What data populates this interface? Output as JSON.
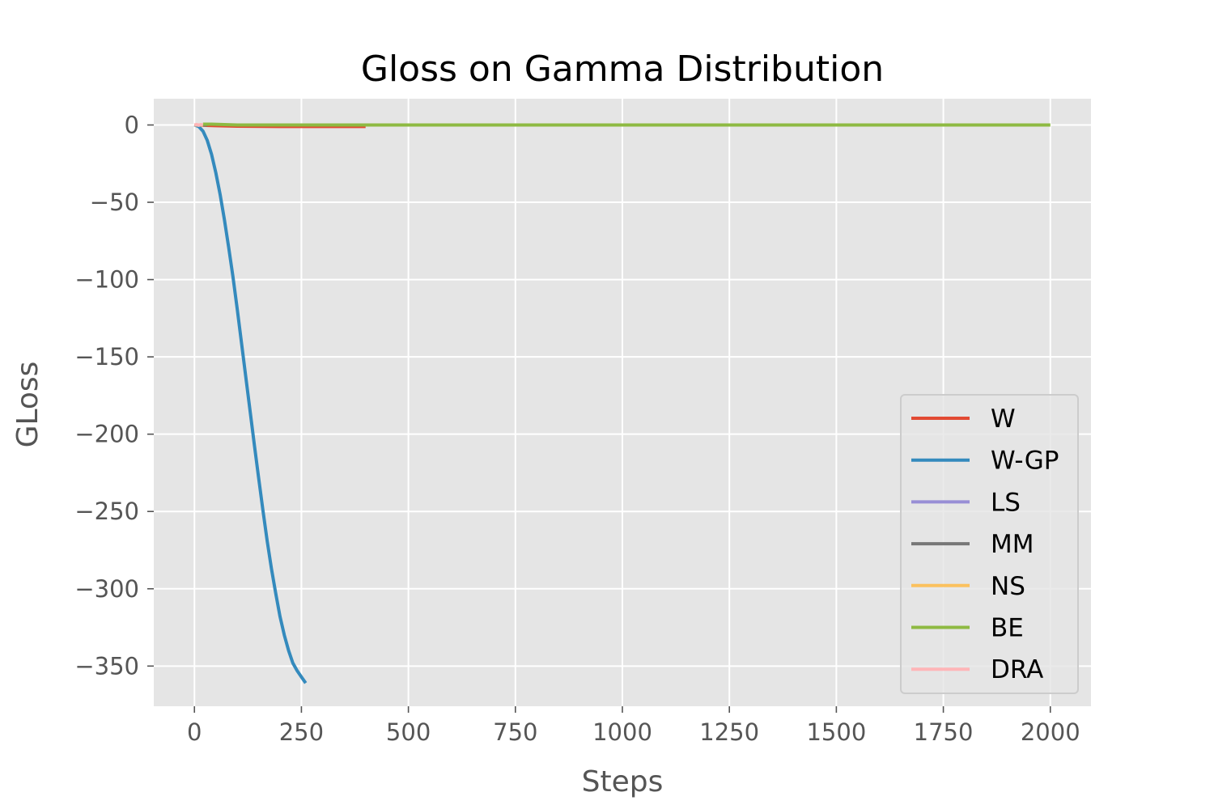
{
  "chart_data": {
    "type": "line",
    "title": "Gloss on Gamma Distribution",
    "xlabel": "Steps",
    "ylabel": "GLoss",
    "xlim": [
      -95,
      2095
    ],
    "ylim": [
      -376,
      17
    ],
    "xticks": [
      0,
      250,
      500,
      750,
      1000,
      1250,
      1500,
      1750,
      2000
    ],
    "xtick_labels": [
      "0",
      "250",
      "500",
      "750",
      "1000",
      "1250",
      "1500",
      "1750",
      "2000"
    ],
    "yticks": [
      0,
      -50,
      -100,
      -150,
      -200,
      -250,
      -300,
      -350
    ],
    "ytick_labels": [
      "0",
      "−50",
      "−100",
      "−150",
      "−200",
      "−250",
      "−300",
      "−350"
    ],
    "grid": true,
    "style": "ggplot",
    "legend_position": "lower right",
    "series": [
      {
        "name": "W",
        "color": "#E24A33",
        "x": [
          0,
          50,
          100,
          200,
          300,
          400
        ],
        "y": [
          0,
          -0.5,
          -0.8,
          -1.0,
          -1.0,
          -1.0
        ]
      },
      {
        "name": "W-GP",
        "color": "#348ABD",
        "x": [
          0,
          10,
          20,
          30,
          40,
          50,
          60,
          70,
          80,
          90,
          100,
          110,
          120,
          130,
          140,
          150,
          160,
          170,
          180,
          190,
          200,
          210,
          220,
          230,
          240,
          250,
          260
        ],
        "y": [
          0,
          -1,
          -4,
          -10,
          -19,
          -31,
          -45,
          -61,
          -79,
          -98,
          -119,
          -141,
          -163,
          -185,
          -207,
          -228,
          -249,
          -269,
          -287,
          -303,
          -318,
          -330,
          -340,
          -348,
          -353,
          -357,
          -361
        ]
      },
      {
        "name": "LS",
        "color": "#988ED5",
        "x": [
          0,
          10,
          20
        ],
        "y": [
          0,
          0,
          0
        ]
      },
      {
        "name": "MM",
        "color": "#777777",
        "x": [
          0,
          10,
          20,
          30
        ],
        "y": [
          0,
          0,
          0,
          0
        ]
      },
      {
        "name": "NS",
        "color": "#FBC15E",
        "x": [
          0,
          10,
          20
        ],
        "y": [
          0,
          0,
          0
        ]
      },
      {
        "name": "BE",
        "color": "#8EBA42",
        "x": [
          20,
          40,
          100,
          200,
          400,
          1000,
          1500,
          2000
        ],
        "y": [
          0.5,
          0.5,
          0,
          0,
          0,
          0,
          0,
          0
        ]
      },
      {
        "name": "DRA",
        "color": "#FFB5B8",
        "x": [
          0,
          5,
          10,
          15,
          20
        ],
        "y": [
          0,
          0.3,
          -0.2,
          0.3,
          0
        ]
      }
    ]
  }
}
